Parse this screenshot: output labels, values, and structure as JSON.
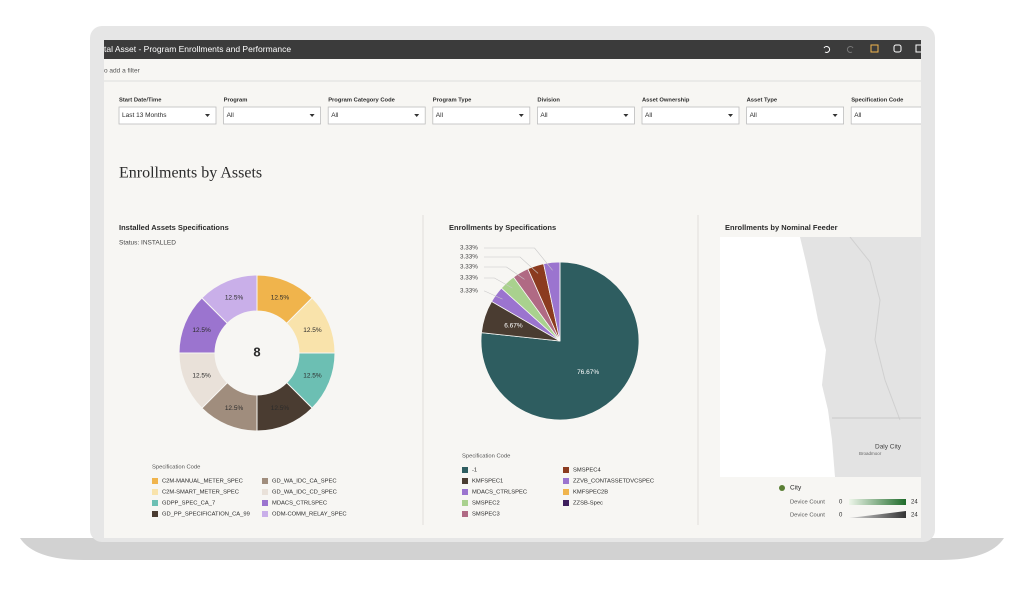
{
  "header": {
    "title": "tal Asset - Program Enrollments and Performance",
    "filter_prompt": "o add a filter"
  },
  "filters": [
    {
      "label": "Start Date/Time",
      "value": "Last 13 Months"
    },
    {
      "label": "Program",
      "value": "All"
    },
    {
      "label": "Program Category Code",
      "value": "All"
    },
    {
      "label": "Program Type",
      "value": "All"
    },
    {
      "label": "Division",
      "value": "All"
    },
    {
      "label": "Asset Ownership",
      "value": "All"
    },
    {
      "label": "Asset Type",
      "value": "All"
    },
    {
      "label": "Specification Code",
      "value": "All"
    }
  ],
  "section_title": "Enrollments by Assets",
  "chart_data": [
    {
      "type": "donut",
      "title": "Installed Assets Specifications",
      "subtitle": "Status: INSTALLED",
      "center_value": 8,
      "legend_title": "Specification Code",
      "categories": [
        "C2M-MANUAL_METER_SPEC",
        "C2M-SMART_METER_SPEC",
        "GDPP_SPEC_CA_7",
        "GD_PP_SPECIFICATION_CA_99",
        "GD_WA_IDC_CA_SPEC",
        "GD_WA_IDC_CD_SPEC",
        "MDACS_CTRLSPEC",
        "ODM-COMM_RELAY_SPEC"
      ],
      "values": [
        12.5,
        12.5,
        12.5,
        12.5,
        12.5,
        12.5,
        12.5,
        12.5
      ],
      "value_labels": [
        "12.5%",
        "12.5%",
        "12.5%",
        "12.5%",
        "12.5%",
        "12.5%",
        "12.5%",
        "12.5%"
      ],
      "colors": [
        "#f0b44c",
        "#f9e3ab",
        "#6cbfb3",
        "#4a3c31",
        "#a08d7d",
        "#e9e1d9",
        "#9b74cf",
        "#c9afe9"
      ]
    },
    {
      "type": "pie",
      "title": "Enrollments by Specifications",
      "legend_title": "Specification Code",
      "categories": [
        "-1",
        "KMFSPEC1",
        "MDACS_CTRLSPEC",
        "SMSPEC2",
        "SMSPEC3",
        "SMSPEC4",
        "ZZVB_CONTASSETDVCSPEC",
        "KMFSPEC2B",
        "ZZSB-Spec"
      ],
      "values": [
        76.67,
        6.67,
        3.33,
        3.33,
        3.33,
        3.33,
        3.33,
        0,
        0
      ],
      "value_labels": [
        "76.67%",
        "6.67%",
        "3.33%",
        "3.33%",
        "3.33%",
        "3.33%",
        "3.33%",
        null,
        null
      ],
      "colors": [
        "#2e5d60",
        "#4a3c31",
        "#9b74cf",
        "#a9d18e",
        "#b06a84",
        "#8b3b1f",
        "#9b74cf",
        "#f0b44c",
        "#3e1f5d"
      ]
    }
  ],
  "map": {
    "title": "Enrollments by Nominal Feeder",
    "places": [
      "Daly City",
      "Broadmoor"
    ],
    "legend": {
      "series_name": "City",
      "series_color": "#5a7f35",
      "scales": [
        {
          "label": "Device Count",
          "min": 0,
          "max": 24
        },
        {
          "label": "Device Count",
          "min": 0,
          "max": 24
        }
      ]
    }
  }
}
